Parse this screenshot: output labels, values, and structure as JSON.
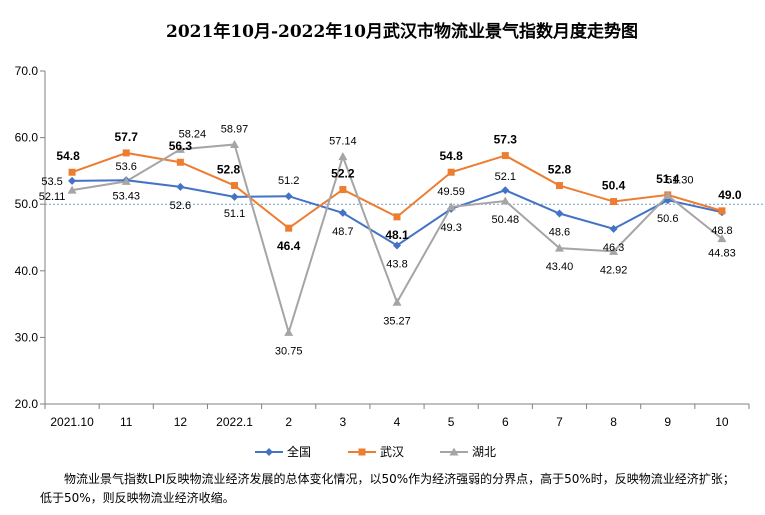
{
  "chart_data": {
    "type": "line",
    "title": "2021年10月-2022年10月武汉市物流业景气指数月度走势图",
    "categories": [
      "2021.10",
      "11",
      "12",
      "2022.1",
      "2",
      "3",
      "4",
      "5",
      "6",
      "7",
      "8",
      "9",
      "10"
    ],
    "ylim": [
      20,
      70
    ],
    "yticks": [
      "20.0",
      "30.0",
      "40.0",
      "50.0",
      "60.0",
      "70.0"
    ],
    "reference_line": 50,
    "legend_position": "bottom",
    "series": [
      {
        "name": "全国",
        "color": "#4472C4",
        "marker": "diamond",
        "values": [
          53.5,
          53.6,
          52.6,
          51.1,
          51.2,
          48.7,
          43.8,
          49.3,
          52.1,
          48.6,
          46.3,
          50.6,
          48.8
        ],
        "labels": [
          "53.5",
          "53.6",
          "52.6",
          "51.1",
          "51.2",
          "48.7",
          "43.8",
          "49.3",
          "52.1",
          "48.6",
          "46.3",
          "50.6",
          "48.8"
        ]
      },
      {
        "name": "武汉",
        "color": "#ED7D31",
        "marker": "square",
        "values": [
          54.8,
          57.7,
          56.3,
          52.8,
          46.4,
          52.2,
          48.1,
          54.8,
          57.3,
          52.8,
          50.4,
          51.4,
          49.0
        ],
        "labels": [
          "54.8",
          "57.7",
          "56.3",
          "52.8",
          "46.4",
          "52.2",
          "48.1",
          "54.8",
          "57.3",
          "52.8",
          "50.4",
          "51.4",
          "49.0"
        ]
      },
      {
        "name": "湖北",
        "color": "#A5A5A5",
        "marker": "triangle",
        "values": [
          52.11,
          53.43,
          58.24,
          58.97,
          30.75,
          57.14,
          35.27,
          49.59,
          50.48,
          43.4,
          42.92,
          51.3,
          44.83
        ],
        "labels": [
          "52.11",
          "53.43",
          "58.24",
          "58.97",
          "30.75",
          "57.14",
          "35.27",
          "49.59",
          "50.48",
          "43.40",
          "42.92",
          "51.30",
          "44.83"
        ]
      }
    ]
  },
  "note": "物流业景气指数LPI反映物流业经济发展的总体变化情况，以50%作为经济强弱的分界点，高于50%时，反映物流业经济扩张；低于50%，则反映物流业经济收缩。"
}
